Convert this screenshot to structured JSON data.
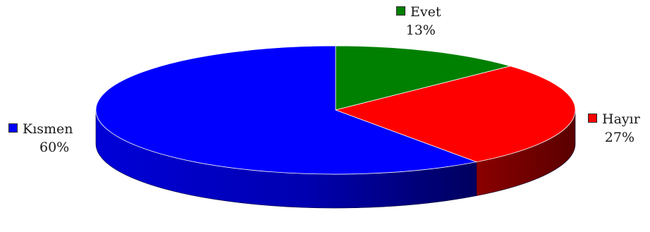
{
  "chart_data": {
    "type": "pie",
    "style": "3d",
    "categories": [
      "Evet",
      "Hayır",
      "Kısmen"
    ],
    "values": [
      13,
      27,
      60
    ],
    "value_labels": [
      "13%",
      "27%",
      "60%"
    ],
    "colors": [
      "#008000",
      "#ff0000",
      "#0000ff"
    ],
    "side_colors": [
      "#004d00",
      "#6e0000",
      "#00008b"
    ],
    "legend": "inline labels with color keys"
  }
}
